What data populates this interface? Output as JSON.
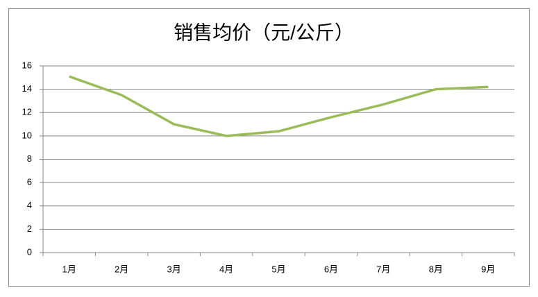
{
  "chart_data": {
    "type": "line",
    "title": "销售均价（元/公斤）",
    "categories": [
      "1月",
      "2月",
      "3月",
      "4月",
      "5月",
      "6月",
      "7月",
      "8月",
      "9月"
    ],
    "series": [
      {
        "name": "销售均价",
        "color": "#9bbb59",
        "values": [
          15.1,
          13.5,
          11,
          10,
          10.4,
          11.6,
          12.7,
          14,
          14.2
        ]
      }
    ],
    "ylim": [
      0,
      16
    ],
    "yticks": [
      0,
      2,
      4,
      6,
      8,
      10,
      12,
      14,
      16
    ],
    "grid": true
  }
}
